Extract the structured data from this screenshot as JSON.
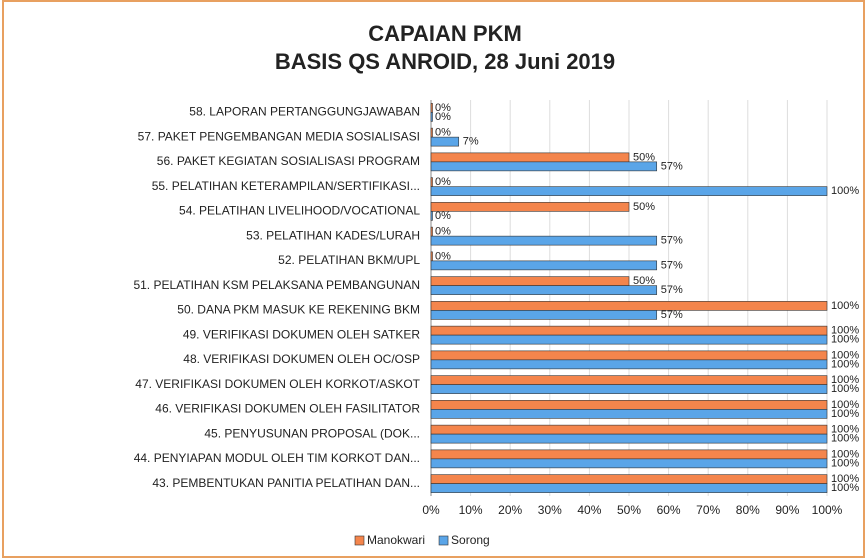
{
  "chart_data": {
    "type": "hbar",
    "title": [
      "CAPAIAN PKM",
      "BASIS QS ANROID, 28 Juni 2019"
    ],
    "categories": [
      "58. LAPORAN PERTANGGUNGJAWABAN",
      "57. PAKET PENGEMBANGAN MEDIA SOSIALISASI",
      "56. PAKET KEGIATAN SOSIALISASI PROGRAM",
      "55. PELATIHAN KETERAMPILAN/SERTIFIKASI...",
      "54. PELATIHAN LIVELIHOOD/VOCATIONAL",
      "53. PELATIHAN KADES/LURAH",
      "52. PELATIHAN BKM/UPL",
      "51. PELATIHAN KSM PELAKSANA PEMBANGUNAN",
      "50. DANA PKM MASUK KE REKENING BKM",
      "49. VERIFIKASI DOKUMEN OLEH SATKER",
      "48. VERIFIKASI DOKUMEN OLEH OC/OSP",
      "47. VERIFIKASI DOKUMEN OLEH KORKOT/ASKOT",
      "46. VERIFIKASI DOKUMEN OLEH FASILITATOR",
      "45. PENYUSUNAN PROPOSAL (DOK...",
      "44. PENYIAPAN MODUL OLEH TIM KORKOT DAN...",
      "43. PEMBENTUKAN PANITIA PELATIHAN DAN..."
    ],
    "series": [
      {
        "name": "Manokwari",
        "color": "#f4854c",
        "values": [
          0,
          0,
          50,
          0,
          50,
          0,
          0,
          50,
          100,
          100,
          100,
          100,
          100,
          100,
          100,
          100
        ],
        "value_labels": [
          "0%",
          "0%",
          "50%",
          "0%",
          "50%",
          "0%",
          "0%",
          "50%",
          "100%",
          "100%",
          "100%",
          "100%",
          "100%",
          "100%",
          "100%",
          "100%"
        ]
      },
      {
        "name": "Sorong",
        "color": "#5aa5e8",
        "values": [
          0,
          7,
          57,
          100,
          0,
          57,
          57,
          57,
          57,
          100,
          100,
          100,
          100,
          100,
          100,
          100
        ],
        "value_labels": [
          "0%",
          "7%",
          "57%",
          "100%",
          "0%",
          "57%",
          "57%",
          "57%",
          "57%",
          "100%",
          "100%",
          "100%",
          "100%",
          "100%",
          "100%",
          "100%"
        ]
      }
    ],
    "xlim": [
      0,
      100
    ],
    "xticks": [
      {
        "value": 0,
        "label": "0%"
      },
      {
        "value": 10,
        "label": "10%"
      },
      {
        "value": 20,
        "label": "20%"
      },
      {
        "value": 30,
        "label": "30%"
      },
      {
        "value": 40,
        "label": "40%"
      },
      {
        "value": 50,
        "label": "50%"
      },
      {
        "value": 60,
        "label": "60%"
      },
      {
        "value": 70,
        "label": "70%"
      },
      {
        "value": 80,
        "label": "80%"
      },
      {
        "value": 90,
        "label": "90%"
      },
      {
        "value": 100,
        "label": "100%"
      }
    ]
  }
}
